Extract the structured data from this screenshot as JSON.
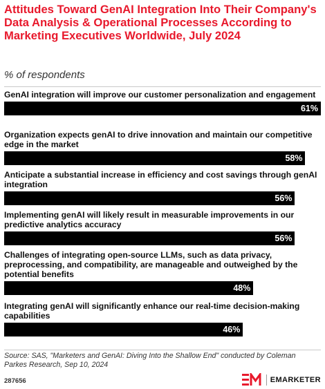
{
  "title": "Attitudes Toward GenAI Integration Into Their Company's Data Analysis & Operational Processes According to Marketing Executives Worldwide, July 2024",
  "subtitle": "% of respondents",
  "chart_data": {
    "type": "bar",
    "orientation": "horizontal",
    "categories": [
      "GenAI integration will improve our customer personalization and engagement",
      "Organization expects genAI to drive innovation and maintain our competitive edge in the market",
      "Anticipate a substantial increase in efficiency and cost savings through genAI integration",
      "Implementing genAI will likely result in measurable improvements in our predictive analytics accuracy",
      "Challenges of integrating open-source LLMs, such as data privacy, preprocessing, and compatibility, are manageable and outweighed by the potential benefits",
      "Integrating genAI will significantly enhance our real-time decision-making capabilities"
    ],
    "values": [
      61,
      58,
      56,
      56,
      48,
      46
    ],
    "value_labels": [
      "61%",
      "58%",
      "56%",
      "56%",
      "48%",
      "46%"
    ],
    "bar_color": "#000000",
    "xlim": [
      0,
      61
    ]
  },
  "source": "Source: SAS, \"Marketers and GenAI: Diving Into the Shallow End\" conducted by Coleman Parkes Research, Sep 10, 2024",
  "chart_id": "287656",
  "brand": {
    "logo_text": "EM",
    "name": "EMARKETER",
    "accent_color": "#e8192c"
  },
  "colors": {
    "title": "#e8192c",
    "bar": "#000000",
    "value_label_inside": "#ffffff",
    "value_label_outside": "#000000"
  }
}
